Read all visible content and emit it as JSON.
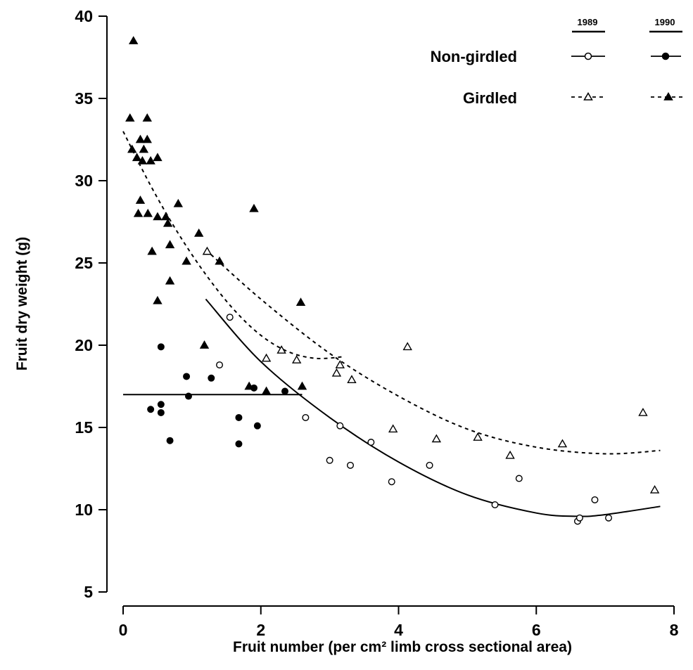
{
  "chart_data": {
    "type": "scatter",
    "title": "",
    "xlabel": "Fruit number  (per cm² limb cross sectional area)",
    "ylabel": "Fruit dry weight (g)",
    "xlim": [
      0,
      8
    ],
    "ylim": [
      5,
      40
    ],
    "xticks": [
      0,
      2,
      4,
      6,
      8
    ],
    "yticks": [
      5,
      10,
      15,
      20,
      25,
      30,
      35,
      40
    ],
    "grid": false,
    "legend": {
      "placement": "top-right",
      "years": [
        "1989",
        "1990"
      ],
      "rows": [
        "Non-girdled",
        "Girdled"
      ]
    },
    "series": [
      {
        "name": "Non-girdled 1989",
        "marker": "open-circle",
        "points": [
          [
            1.55,
            21.7
          ],
          [
            1.4,
            18.8
          ],
          [
            2.65,
            15.6
          ],
          [
            3.15,
            15.1
          ],
          [
            3.0,
            13.0
          ],
          [
            3.3,
            12.7
          ],
          [
            3.6,
            14.1
          ],
          [
            3.9,
            11.7
          ],
          [
            4.45,
            12.7
          ],
          [
            5.4,
            10.3
          ],
          [
            5.75,
            11.9
          ],
          [
            6.6,
            9.3
          ],
          [
            6.63,
            9.5
          ],
          [
            6.85,
            10.6
          ],
          [
            7.05,
            9.5
          ]
        ]
      },
      {
        "name": "Non-girdled 1990",
        "marker": "filled-circle",
        "points": [
          [
            0.4,
            16.1
          ],
          [
            0.55,
            19.9
          ],
          [
            0.55,
            16.4
          ],
          [
            0.55,
            15.9
          ],
          [
            0.68,
            14.2
          ],
          [
            0.92,
            18.1
          ],
          [
            0.95,
            16.9
          ],
          [
            1.28,
            18.0
          ],
          [
            1.68,
            15.6
          ],
          [
            1.68,
            14.0
          ],
          [
            1.9,
            17.4
          ],
          [
            1.95,
            15.1
          ],
          [
            2.35,
            17.2
          ]
        ]
      },
      {
        "name": "Girdled 1989",
        "marker": "open-triangle",
        "points": [
          [
            1.22,
            25.7
          ],
          [
            2.08,
            19.2
          ],
          [
            2.3,
            19.7
          ],
          [
            2.52,
            19.1
          ],
          [
            3.1,
            18.3
          ],
          [
            3.15,
            18.8
          ],
          [
            3.32,
            17.9
          ],
          [
            3.92,
            14.9
          ],
          [
            4.13,
            19.9
          ],
          [
            4.55,
            14.3
          ],
          [
            5.15,
            14.4
          ],
          [
            5.62,
            13.3
          ],
          [
            6.38,
            14.0
          ],
          [
            7.55,
            15.9
          ],
          [
            7.72,
            11.2
          ]
        ]
      },
      {
        "name": "Girdled 1990",
        "marker": "filled-triangle",
        "points": [
          [
            0.15,
            38.5
          ],
          [
            0.1,
            33.8
          ],
          [
            0.35,
            33.8
          ],
          [
            0.13,
            31.9
          ],
          [
            0.3,
            31.9
          ],
          [
            0.25,
            32.5
          ],
          [
            0.35,
            32.5
          ],
          [
            0.2,
            31.4
          ],
          [
            0.28,
            31.2
          ],
          [
            0.4,
            31.2
          ],
          [
            0.5,
            31.4
          ],
          [
            0.22,
            28.0
          ],
          [
            0.25,
            28.8
          ],
          [
            0.36,
            28.0
          ],
          [
            0.5,
            27.8
          ],
          [
            0.62,
            27.8
          ],
          [
            0.65,
            27.4
          ],
          [
            0.8,
            28.6
          ],
          [
            0.42,
            25.7
          ],
          [
            0.68,
            26.1
          ],
          [
            0.92,
            25.1
          ],
          [
            1.1,
            26.8
          ],
          [
            1.4,
            25.1
          ],
          [
            0.5,
            22.7
          ],
          [
            0.68,
            23.9
          ],
          [
            1.9,
            28.3
          ],
          [
            2.58,
            22.6
          ],
          [
            1.18,
            20.0
          ],
          [
            1.83,
            17.5
          ],
          [
            2.08,
            17.2
          ],
          [
            2.6,
            17.5
          ]
        ]
      }
    ],
    "fits": [
      {
        "name": "Non-girdled 1989 fit",
        "style": "solid",
        "x": [
          1.2,
          2.0,
          3.0,
          4.0,
          5.0,
          6.0,
          6.6,
          7.0,
          7.8
        ],
        "y": [
          22.8,
          19.0,
          15.6,
          12.9,
          10.9,
          9.8,
          9.6,
          9.7,
          10.2
        ]
      },
      {
        "name": "Non-girdled 1990 fit",
        "style": "solid",
        "x": [
          0.0,
          2.6
        ],
        "y": [
          17.0,
          17.0
        ]
      },
      {
        "name": "Girdled 1989 fit",
        "style": "dashed",
        "x": [
          1.2,
          2.0,
          3.0,
          4.0,
          5.0,
          6.0,
          7.0,
          7.8
        ],
        "y": [
          25.8,
          22.8,
          19.5,
          16.9,
          14.9,
          13.8,
          13.4,
          13.6
        ]
      },
      {
        "name": "Girdled 1990 fit",
        "style": "dashed",
        "x": [
          0.0,
          0.4,
          0.8,
          1.2,
          1.6,
          2.0,
          2.4,
          2.8,
          3.2
        ],
        "y": [
          33.0,
          29.7,
          26.8,
          24.3,
          22.2,
          20.6,
          19.6,
          19.2,
          19.3
        ]
      }
    ]
  }
}
